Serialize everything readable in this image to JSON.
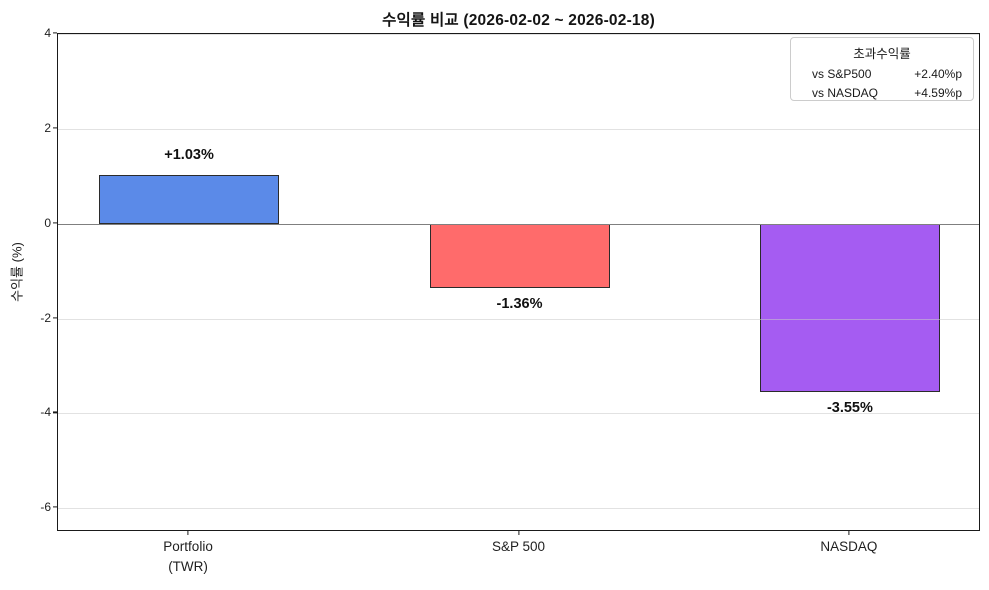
{
  "chart_data": {
    "type": "bar",
    "title": "수익률 비교 (2026-02-02 ~ 2026-02-18)",
    "ylabel": "수익률 (%)",
    "xlabel": "",
    "categories": [
      "Portfolio\n(TWR)",
      "S&P 500",
      "NASDAQ"
    ],
    "values": [
      1.03,
      -1.36,
      -3.55
    ],
    "bar_labels": [
      "+1.03%",
      "-1.36%",
      "-3.55%"
    ],
    "bar_colors": [
      "#5b8ae8",
      "#ff6b6b",
      "#a55cf2"
    ],
    "yticks": [
      4,
      2,
      0,
      -2,
      -4,
      -6
    ],
    "ylim": [
      -6.5,
      4
    ],
    "grid": true,
    "zero_line": true,
    "legend": {
      "position": "upper right",
      "title": "초과수익률",
      "items": [
        {
          "label": "vs S&P500",
          "value": "+2.40%p"
        },
        {
          "label": "vs NASDAQ",
          "value": "+4.59%p"
        }
      ]
    }
  }
}
